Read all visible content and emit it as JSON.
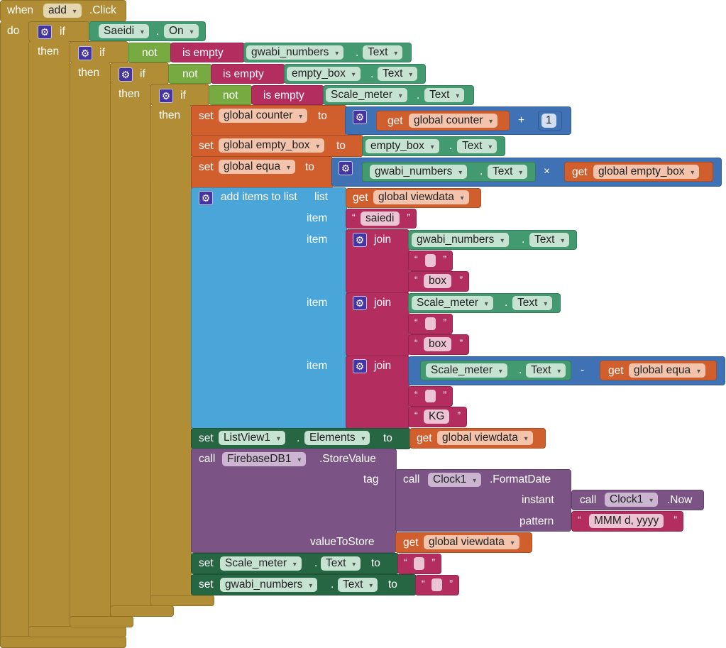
{
  "event": {
    "when": "when",
    "component": "add",
    "event": ".Click",
    "do": "do"
  },
  "control": {
    "if": "if",
    "then": "then"
  },
  "kw": {
    "set": "set",
    "to": "to",
    "get": "get",
    "call": "call",
    "item": "item",
    "join": "join",
    "list": "list",
    "dot": ".",
    "plus": "+",
    "times": "×",
    "minus": "-",
    "not": "not",
    "is_empty": "is empty"
  },
  "conditions": {
    "c1": {
      "component": "Saeidi",
      "property": "On"
    },
    "c2": {
      "component": "gwabi_numbers",
      "property": "Text"
    },
    "c3": {
      "component": "empty_box",
      "property": "Text"
    },
    "c4": {
      "component": "Scale_meter",
      "property": "Text"
    }
  },
  "vars": {
    "counter": "global counter",
    "empty_box": "global empty_box",
    "equa": "global equa",
    "viewdata": "global viewdata"
  },
  "number_one": "1",
  "add_items": {
    "label": "add items to list",
    "string1": "saiedi",
    "box": "box",
    "kg": "KG"
  },
  "components": {
    "gwabi": "gwabi_numbers",
    "empty_box": "empty_box",
    "scale": "Scale_meter",
    "text": "Text",
    "listview": "ListView1",
    "elements": "Elements",
    "firebase": "FirebaseDB1",
    "clock": "Clock1"
  },
  "firebase": {
    "method": ".StoreValue",
    "tag": "tag",
    "value": "valueToStore"
  },
  "clock": {
    "format": ".FormatDate",
    "instant": "instant",
    "pattern": "pattern",
    "now": ".Now",
    "pattern_value": "MMM d, yyyy"
  },
  "colors": {
    "event": "#b18e35",
    "component": "#439970",
    "logic": "#77ab41",
    "text": "#b32d5e",
    "variable": "#d05f2d",
    "math": "#3f71b5",
    "list": "#4aa6d9",
    "setter": "#266643",
    "method": "#7c5385"
  }
}
